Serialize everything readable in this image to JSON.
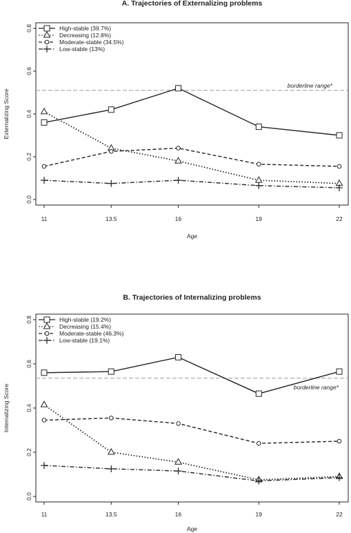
{
  "chart_data": [
    {
      "type": "line",
      "title": "A. Trajectories of Externalizing problems",
      "xlabel": "Age",
      "ylabel": "Externalizing Score",
      "x": [
        11,
        13.5,
        16,
        19,
        22
      ],
      "xticks": [
        "11",
        "13.5",
        "16",
        "19",
        "22"
      ],
      "ylim": [
        0,
        0.8
      ],
      "yticks": [
        "0.0",
        "0.2",
        "0.4",
        "0.6",
        "0.8"
      ],
      "grid": false,
      "legend_position": "top-left",
      "reference_line": {
        "y": 0.51,
        "label": "borderline range*"
      },
      "series": [
        {
          "name": "High-stable (39.7%)",
          "marker": "square",
          "dash": "solid",
          "values": [
            0.36,
            0.42,
            0.52,
            0.34,
            0.3
          ]
        },
        {
          "name": "Decreasing (12.8%)",
          "marker": "triangle",
          "dash": "dotted",
          "values": [
            0.41,
            0.24,
            0.18,
            0.09,
            0.075
          ]
        },
        {
          "name": "Moderate-stable (34.5%)",
          "marker": "circle",
          "dash": "dashed",
          "values": [
            0.155,
            0.225,
            0.24,
            0.165,
            0.155
          ]
        },
        {
          "name": "Low-stable (13%)",
          "marker": "plus",
          "dash": "dashdot",
          "values": [
            0.09,
            0.075,
            0.09,
            0.065,
            0.055
          ]
        }
      ]
    },
    {
      "type": "line",
      "title": "B. Trajectories of Internalizing problems",
      "xlabel": "Age",
      "ylabel": "Internalizing Score",
      "x": [
        11,
        13.5,
        16,
        19,
        22
      ],
      "xticks": [
        "11",
        "13.5",
        "16",
        "19",
        "22"
      ],
      "ylim": [
        0,
        0.8
      ],
      "yticks": [
        "0.0",
        "0.2",
        "0.4",
        "0.6",
        "0.8"
      ],
      "grid": false,
      "legend_position": "top-left",
      "reference_line": {
        "y": 0.535,
        "label": "borderline range*"
      },
      "series": [
        {
          "name": "High-stable (19.2%)",
          "marker": "square",
          "dash": "solid",
          "values": [
            0.56,
            0.565,
            0.63,
            0.465,
            0.565
          ]
        },
        {
          "name": "Decreasing (15.4%)",
          "marker": "triangle",
          "dash": "dotted",
          "values": [
            0.415,
            0.2,
            0.155,
            0.075,
            0.09
          ]
        },
        {
          "name": "Moderate-stable (46.3%)",
          "marker": "circle",
          "dash": "dashed",
          "values": [
            0.345,
            0.355,
            0.33,
            0.24,
            0.25
          ]
        },
        {
          "name": "Low-stable (19.1%)",
          "marker": "plus",
          "dash": "dashdot",
          "values": [
            0.14,
            0.125,
            0.115,
            0.07,
            0.085
          ]
        }
      ]
    }
  ]
}
